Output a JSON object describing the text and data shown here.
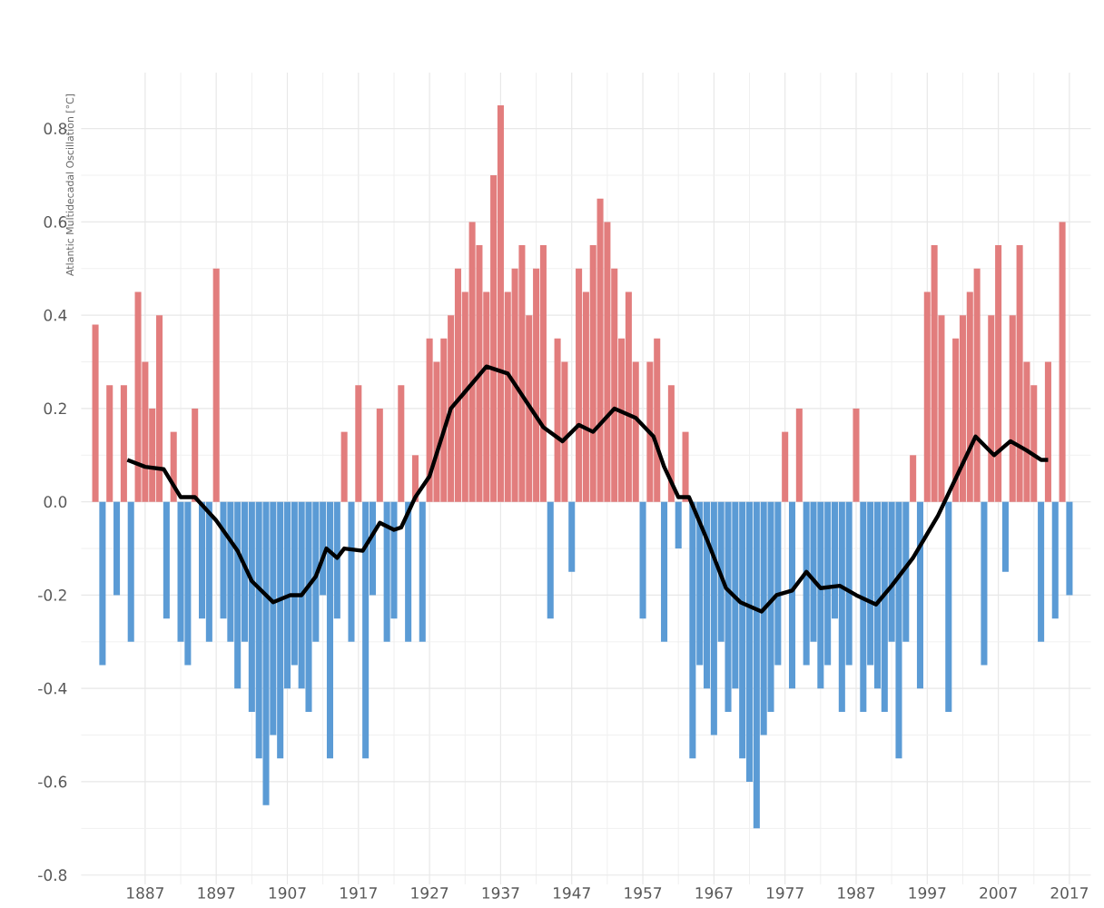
{
  "chart_data": {
    "type": "bar",
    "ylabel": "Atlantic Multidecadal Oscillation [°C]",
    "x": [
      1880,
      1881,
      1882,
      1883,
      1884,
      1885,
      1886,
      1887,
      1888,
      1889,
      1890,
      1891,
      1892,
      1893,
      1894,
      1895,
      1896,
      1897,
      1898,
      1899,
      1900,
      1901,
      1902,
      1903,
      1904,
      1905,
      1906,
      1907,
      1908,
      1909,
      1910,
      1911,
      1912,
      1913,
      1914,
      1915,
      1916,
      1917,
      1918,
      1919,
      1920,
      1921,
      1922,
      1923,
      1924,
      1925,
      1926,
      1927,
      1928,
      1929,
      1930,
      1931,
      1932,
      1933,
      1934,
      1935,
      1936,
      1937,
      1938,
      1939,
      1940,
      1941,
      1942,
      1943,
      1944,
      1945,
      1946,
      1947,
      1948,
      1949,
      1950,
      1951,
      1952,
      1953,
      1954,
      1955,
      1956,
      1957,
      1958,
      1959,
      1960,
      1961,
      1962,
      1963,
      1964,
      1965,
      1966,
      1967,
      1968,
      1969,
      1970,
      1971,
      1972,
      1973,
      1974,
      1975,
      1976,
      1977,
      1978,
      1979,
      1980,
      1981,
      1982,
      1983,
      1984,
      1985,
      1986,
      1987,
      1988,
      1989,
      1990,
      1991,
      1992,
      1993,
      1994,
      1995,
      1996,
      1997,
      1998,
      1999,
      2000,
      2001,
      2002,
      2003,
      2004,
      2005,
      2006,
      2007,
      2008,
      2009,
      2010,
      2011,
      2012,
      2013,
      2014,
      2015,
      2016,
      2017
    ],
    "series": [
      {
        "color": "#e27d7d",
        "values": [
          0.38,
          null,
          0.25,
          null,
          0.25,
          null,
          0.45,
          0.3,
          0.2,
          0.4,
          null,
          0.15,
          null,
          null,
          0.2,
          null,
          null,
          0.5,
          null,
          null,
          null,
          null,
          null,
          null,
          null,
          null,
          null,
          null,
          null,
          null,
          null,
          null,
          null,
          null,
          null,
          0.15,
          null,
          0.25,
          null,
          null,
          0.2,
          null,
          null,
          0.25,
          null,
          0.1,
          null,
          0.35,
          0.3,
          0.35,
          0.4,
          0.5,
          0.45,
          0.6,
          0.55,
          0.45,
          0.7,
          0.85,
          0.45,
          0.5,
          0.55,
          0.4,
          0.5,
          0.55,
          null,
          0.35,
          0.3,
          null,
          0.5,
          0.45,
          0.55,
          0.65,
          0.6,
          0.5,
          0.35,
          0.45,
          0.3,
          null,
          0.3,
          0.35,
          null,
          0.25,
          null,
          0.15,
          null,
          null,
          null,
          null,
          null,
          null,
          null,
          null,
          null,
          null,
          null,
          null,
          null,
          0.15,
          null,
          0.2,
          null,
          null,
          null,
          null,
          null,
          null,
          null,
          0.2,
          null,
          null,
          null,
          null,
          null,
          null,
          null,
          0.1,
          null,
          0.45,
          0.55,
          0.4,
          null,
          0.35,
          0.4,
          0.45,
          0.5,
          null,
          0.4,
          0.55,
          null,
          0.4,
          0.55,
          0.3,
          0.25,
          null,
          0.3,
          null,
          0.6,
          null
        ]
      },
      {
        "color": "#5b9bd5",
        "values": [
          null,
          -0.35,
          null,
          -0.2,
          null,
          -0.3,
          null,
          null,
          null,
          null,
          -0.25,
          null,
          -0.3,
          -0.35,
          null,
          -0.25,
          -0.3,
          null,
          -0.25,
          -0.3,
          -0.4,
          -0.3,
          -0.45,
          -0.55,
          -0.65,
          -0.5,
          -0.55,
          -0.4,
          -0.35,
          -0.4,
          -0.45,
          -0.3,
          -0.2,
          -0.55,
          -0.25,
          null,
          -0.3,
          null,
          -0.55,
          -0.2,
          null,
          -0.3,
          -0.25,
          null,
          -0.3,
          null,
          -0.3,
          null,
          null,
          null,
          null,
          null,
          null,
          null,
          null,
          null,
          null,
          null,
          null,
          null,
          null,
          null,
          null,
          null,
          -0.25,
          null,
          null,
          -0.15,
          null,
          null,
          null,
          null,
          null,
          null,
          null,
          null,
          null,
          -0.25,
          null,
          null,
          -0.3,
          null,
          -0.1,
          null,
          -0.55,
          -0.35,
          -0.4,
          -0.5,
          -0.3,
          -0.45,
          -0.4,
          -0.55,
          -0.6,
          -0.7,
          -0.5,
          -0.45,
          -0.35,
          null,
          -0.4,
          null,
          -0.35,
          -0.3,
          -0.4,
          -0.35,
          -0.25,
          -0.45,
          -0.35,
          null,
          -0.45,
          -0.35,
          -0.4,
          -0.45,
          -0.3,
          -0.55,
          -0.3,
          null,
          -0.4,
          null,
          null,
          null,
          -0.45,
          null,
          null,
          null,
          null,
          -0.35,
          null,
          null,
          -0.15,
          null,
          null,
          null,
          null,
          -0.3,
          null,
          -0.25,
          null,
          -0.2
        ]
      },
      {
        "type": "line",
        "color": "#000000",
        "x": [
          1884.5,
          1887,
          1889.6,
          1892,
          1894,
          1897,
          1900,
          1902,
          1905,
          1907.4,
          1909,
          1911,
          1912.5,
          1914,
          1915,
          1917.6,
          1920,
          1922,
          1923,
          1925,
          1927,
          1930,
          1935,
          1938,
          1943,
          1945.7,
          1948,
          1950,
          1953,
          1956,
          1958.5,
          1960,
          1962,
          1963.5,
          1966,
          1968.7,
          1970.7,
          1973.7,
          1975.8,
          1978,
          1980,
          1982,
          1984.7,
          1987,
          1989.8,
          1992,
          1995,
          1998.5,
          2001,
          2003.8,
          2006.4,
          2008.7,
          2011,
          2013,
          2014
        ],
        "values": [
          0.09,
          0.075,
          0.07,
          0.01,
          0.01,
          -0.04,
          -0.105,
          -0.17,
          -0.215,
          -0.2,
          -0.2,
          -0.16,
          -0.1,
          -0.12,
          -0.1,
          -0.105,
          -0.045,
          -0.06,
          -0.055,
          0.01,
          0.055,
          0.2,
          0.29,
          0.275,
          0.16,
          0.13,
          0.165,
          0.15,
          0.2,
          0.18,
          0.14,
          0.075,
          0.01,
          0.01,
          -0.08,
          -0.185,
          -0.215,
          -0.235,
          -0.2,
          -0.19,
          -0.15,
          -0.185,
          -0.18,
          -0.2,
          -0.22,
          -0.18,
          -0.12,
          -0.03,
          0.05,
          0.14,
          0.1,
          0.13,
          0.11,
          0.09,
          0.09
        ]
      }
    ],
    "xlim": [
      1878,
      2020
    ],
    "xticks": [
      1887,
      1897,
      1907,
      1917,
      1927,
      1937,
      1947,
      1957,
      1967,
      1977,
      1987,
      1997,
      2007,
      2017
    ],
    "ylim": [
      -0.82,
      0.92
    ],
    "yticks": [
      {
        "value": -0.8,
        "label": "-0.8"
      },
      {
        "value": -0.6,
        "label": "-0.6"
      },
      {
        "value": -0.4,
        "label": "-0.4"
      },
      {
        "value": -0.2,
        "label": "-0.2"
      },
      {
        "value": 0,
        "label": "0.0"
      },
      {
        "value": 0.2,
        "label": "0.2"
      },
      {
        "value": 0.4,
        "label": "0.4"
      },
      {
        "value": 0.6,
        "label": "0.6"
      },
      {
        "value": 0.8,
        "label": "0.8"
      }
    ],
    "grid": true
  }
}
